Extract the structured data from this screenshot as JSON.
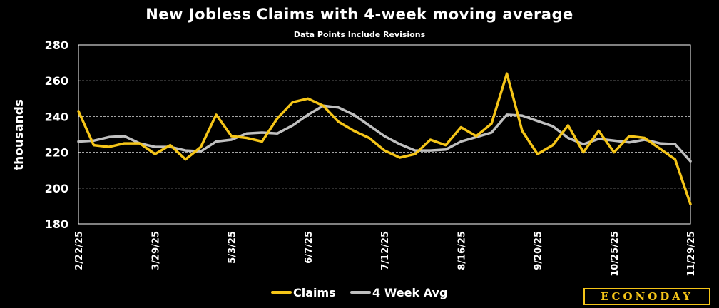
{
  "chart_data": {
    "type": "line",
    "title": "New Jobless Claims with 4-week moving average",
    "subtitle": "Data Points Include Revisions",
    "ylabel": "thousands",
    "ylim": [
      180,
      280
    ],
    "yticks": [
      180,
      200,
      220,
      240,
      260,
      280
    ],
    "grid": true,
    "legend_position": "bottom",
    "x": [
      "2/22/25",
      "3/1/25",
      "3/8/25",
      "3/15/25",
      "3/22/25",
      "3/29/25",
      "4/5/25",
      "4/12/25",
      "4/19/25",
      "4/26/25",
      "5/3/25",
      "5/10/25",
      "5/17/25",
      "5/24/25",
      "5/31/25",
      "6/7/25",
      "6/14/25",
      "6/21/25",
      "6/28/25",
      "7/5/25",
      "7/12/25",
      "7/19/25",
      "7/26/25",
      "8/2/25",
      "8/9/25",
      "8/16/25",
      "8/23/25",
      "8/30/25",
      "9/6/25",
      "9/13/25",
      "9/20/25",
      "9/27/25",
      "10/4/25",
      "10/11/25",
      "10/18/25",
      "10/25/25",
      "11/1/25",
      "11/8/25",
      "11/15/25",
      "11/22/25",
      "11/29/25"
    ],
    "xtick_labels": [
      "2/22/25",
      "3/29/25",
      "5/3/25",
      "6/7/25",
      "7/12/25",
      "8/16/25",
      "9/20/25",
      "10/25/25",
      "11/29/25"
    ],
    "series": [
      {
        "name": "Claims",
        "color": "#f5c518",
        "values": [
          243,
          224,
          223,
          225,
          225,
          219,
          224,
          216,
          223,
          241,
          229,
          228,
          226,
          239,
          248,
          250,
          246,
          237,
          232,
          228,
          221,
          217,
          219,
          227,
          224,
          234,
          229,
          236,
          264,
          232,
          219,
          224,
          235,
          220,
          232,
          220,
          229,
          228,
          222,
          216,
          191
        ]
      },
      {
        "name": "4 Week Avg",
        "color": "#c0c0c0",
        "values": [
          226,
          226.5,
          228.5,
          229,
          225,
          223,
          223,
          221,
          220.5,
          226,
          227,
          230.5,
          231,
          230.5,
          235,
          241,
          246,
          245,
          241,
          235,
          229,
          224.5,
          221,
          221,
          221.5,
          226,
          228.5,
          231,
          241,
          240.5,
          237.5,
          234.5,
          228,
          224.5,
          227.5,
          226.5,
          225.5,
          227,
          225,
          224.5,
          215
        ]
      }
    ]
  },
  "logo": {
    "text": "ECONODAY",
    "color": "#f5c518"
  }
}
